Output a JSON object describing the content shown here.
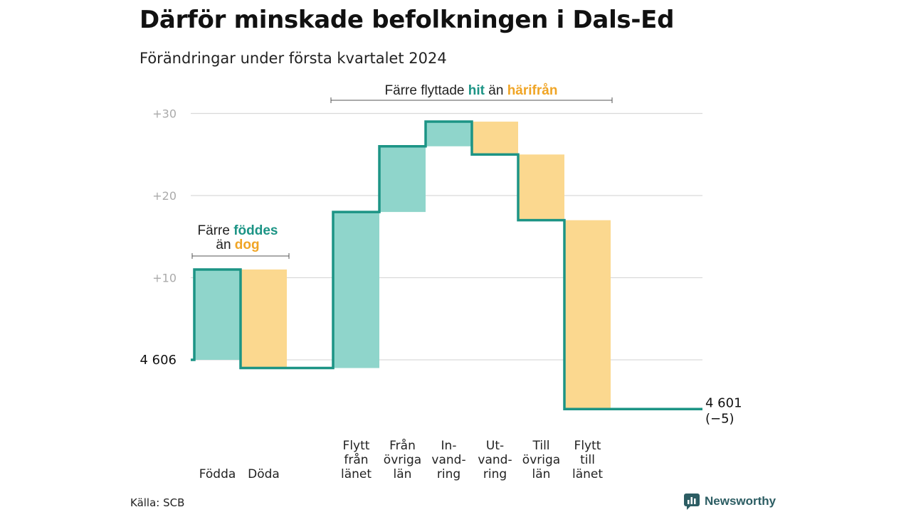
{
  "title": "Därför minskade befolkningen i Dals-Ed",
  "subtitle": "Förändringar under första kvartalet 2024",
  "source": "Källa: SCB",
  "brand": {
    "label": "Newsworthy",
    "icon": "newsworthy-logo-icon"
  },
  "colors": {
    "increase_fill": "#8fd5cb",
    "decrease_fill": "#fbd88f",
    "step_line": "#1c9485",
    "increase_text": "#1c9485",
    "decrease_text": "#f0a526",
    "grid": "#d9d9d9",
    "tick_text": "#aaaaaa"
  },
  "annotations": {
    "births": {
      "part1": "Färre",
      "part2": "föddes",
      "part3": "än",
      "part4": "dog"
    },
    "moves": {
      "part1": "Färre flyttade",
      "part2": "hit",
      "part3": "än",
      "part4": "härifrån"
    }
  },
  "chart_data": {
    "type": "waterfall",
    "title": "Därför minskade befolkningen i Dals-Ed",
    "subtitle": "Förändringar under första kvartalet 2024",
    "start": {
      "label": "4 606",
      "value": 4606
    },
    "end": {
      "label": "4 601",
      "change_label": "(−5)",
      "value": 4601
    },
    "y_ticks": [
      {
        "label": "+10",
        "value": 10
      },
      {
        "label": "+20",
        "value": 20
      },
      {
        "label": "+30",
        "value": 30
      }
    ],
    "ylim": [
      -5,
      31
    ],
    "grid": true,
    "steps": [
      {
        "label": [
          "Födda"
        ],
        "value": 11,
        "kind": "increase"
      },
      {
        "label": [
          "Döda"
        ],
        "value": -12,
        "kind": "decrease"
      },
      {
        "label": [
          "Flytt",
          "från",
          "länet"
        ],
        "value": 19,
        "kind": "increase"
      },
      {
        "label": [
          "Från",
          "övriga",
          "län"
        ],
        "value": 8,
        "kind": "increase"
      },
      {
        "label": [
          "In-",
          "vand-",
          "ring"
        ],
        "value": 3,
        "kind": "increase"
      },
      {
        "label": [
          "Ut-",
          "vand-",
          "ring"
        ],
        "value": -4,
        "kind": "decrease"
      },
      {
        "label": [
          "Till",
          "övriga",
          "län"
        ],
        "value": -8,
        "kind": "decrease"
      },
      {
        "label": [
          "Flytt",
          "till",
          "länet"
        ],
        "value": -23,
        "kind": "decrease"
      }
    ]
  }
}
